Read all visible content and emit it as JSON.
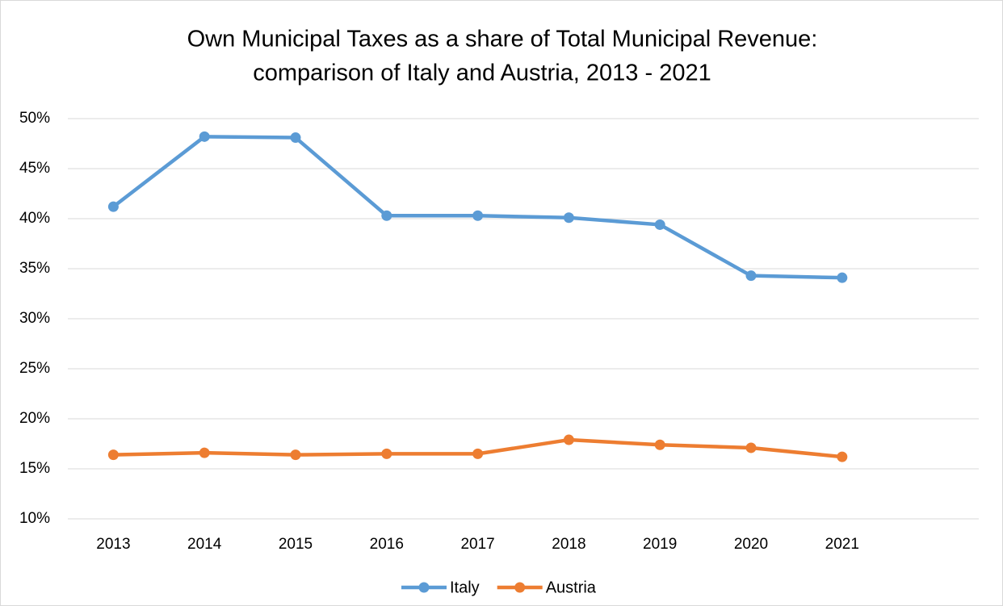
{
  "chart_data": {
    "type": "line",
    "title": [
      "Own Municipal Taxes as a share of Total Municipal Revenue:",
      "comparison of  Italy and Austria, 2013 - 2021"
    ],
    "categories": [
      "2013",
      "2014",
      "2015",
      "2016",
      "2017",
      "2018",
      "2019",
      "2020",
      "2021"
    ],
    "series": [
      {
        "name": "Italy",
        "color": "#5b9bd5",
        "values": [
          41.2,
          48.2,
          48.1,
          40.3,
          40.3,
          40.1,
          39.4,
          34.3,
          34.1
        ]
      },
      {
        "name": "Austria",
        "color": "#ed7d31",
        "values": [
          16.4,
          16.6,
          16.4,
          16.5,
          16.5,
          17.9,
          17.4,
          17.1,
          16.2
        ]
      }
    ],
    "ylim": [
      10,
      50
    ],
    "yticks": [
      {
        "value": 10,
        "label": "10%"
      },
      {
        "value": 15,
        "label": "15%"
      },
      {
        "value": 20,
        "label": "20%"
      },
      {
        "value": 25,
        "label": "25%"
      },
      {
        "value": 30,
        "label": "30%"
      },
      {
        "value": 35,
        "label": "35%"
      },
      {
        "value": 40,
        "label": "40%"
      },
      {
        "value": 45,
        "label": "45%"
      },
      {
        "value": 50,
        "label": "50%"
      }
    ],
    "grid": true,
    "legend": "bottom"
  }
}
